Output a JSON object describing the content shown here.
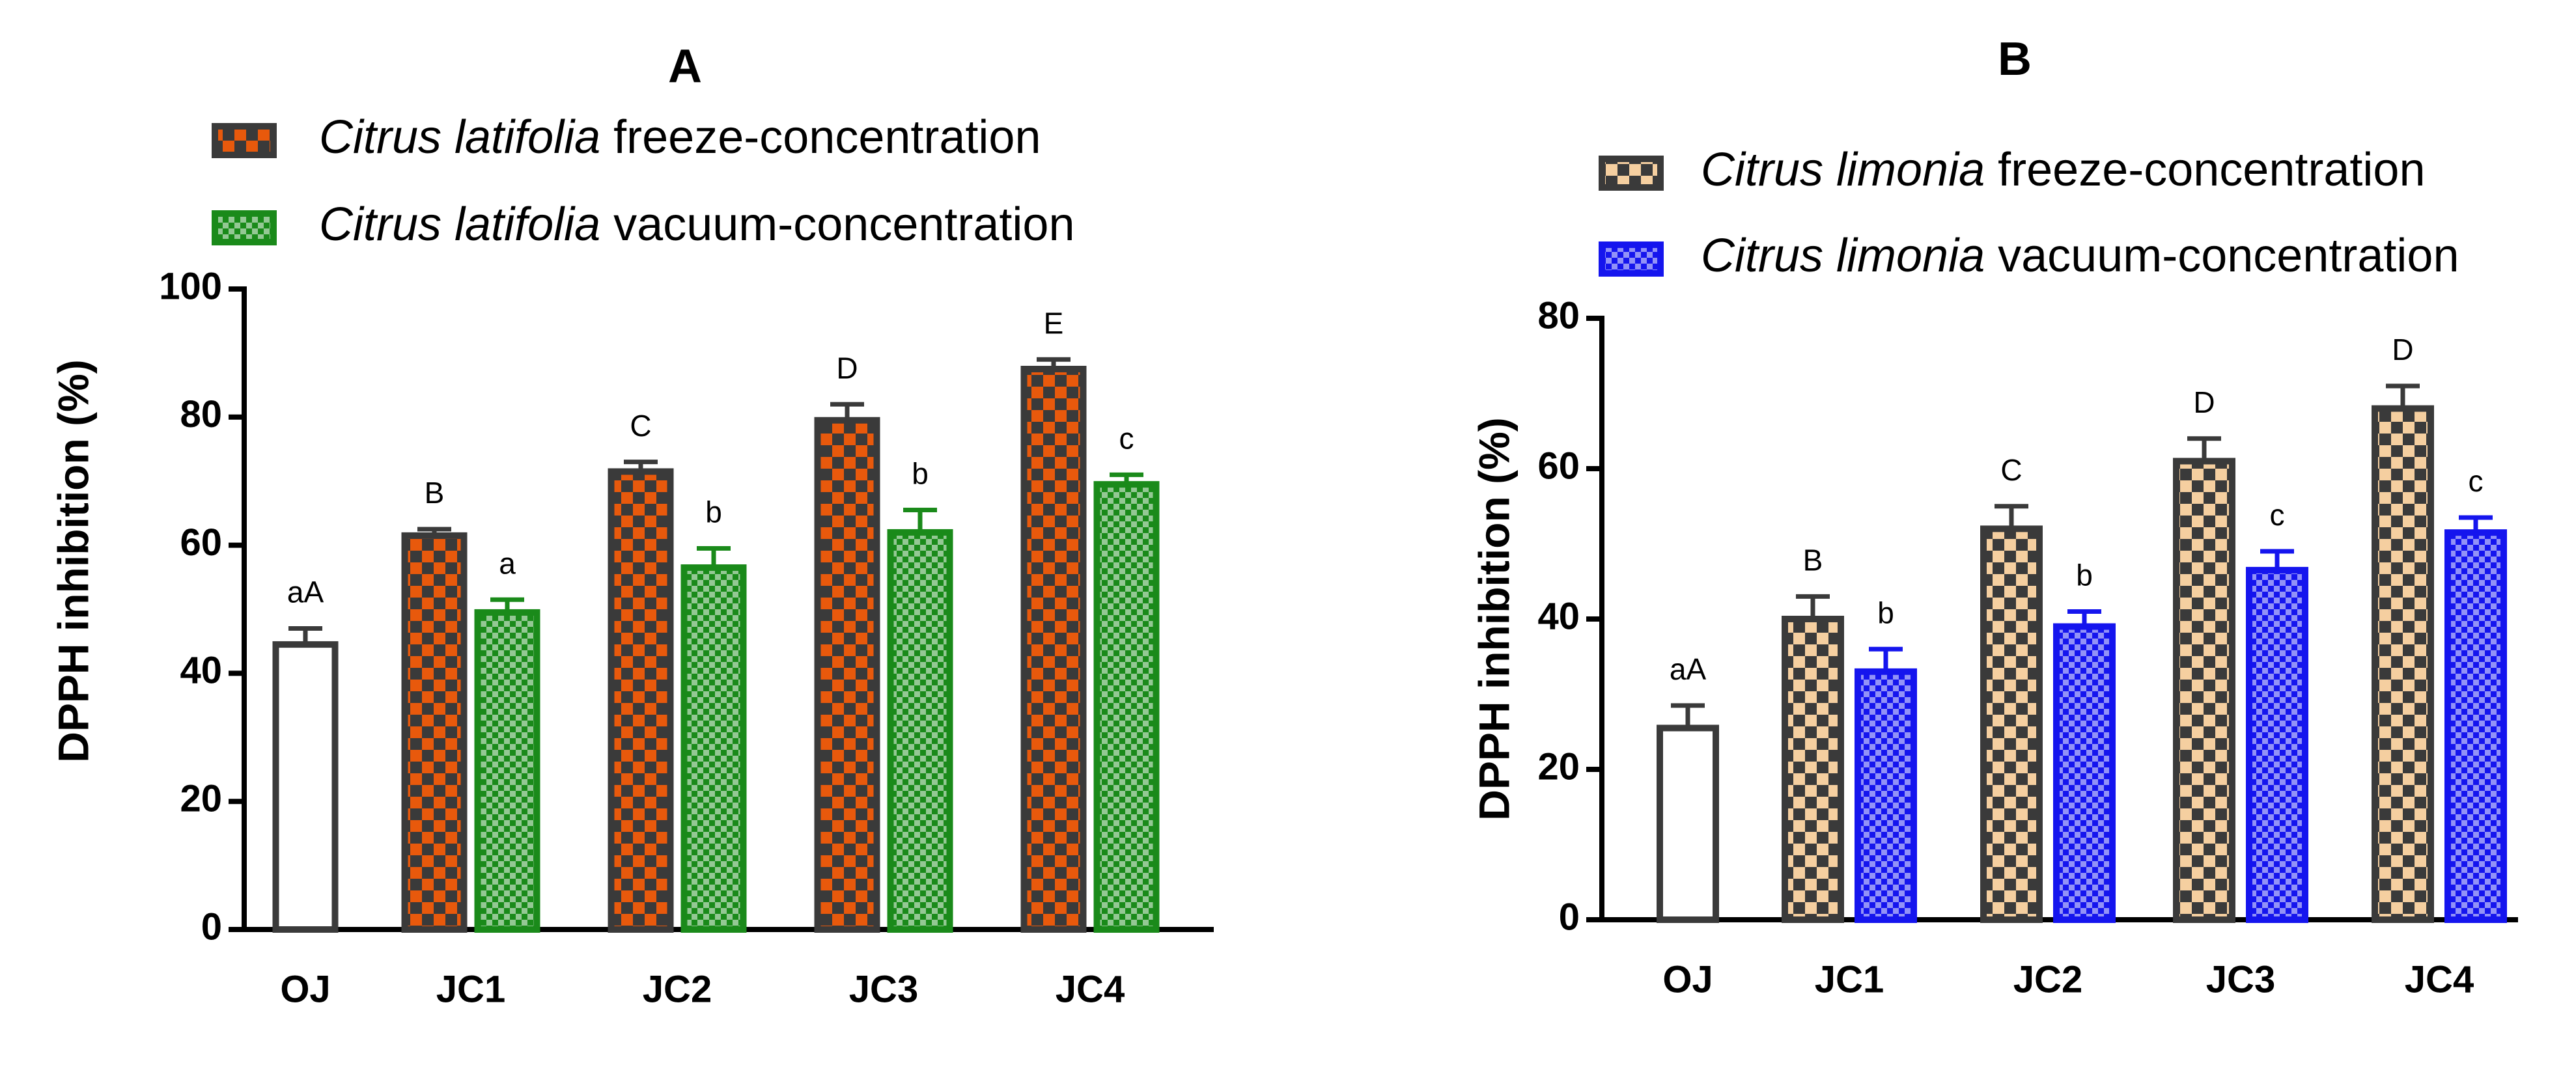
{
  "chart_data": [
    {
      "type": "bar",
      "title": "A",
      "ylabel": "DPPH inhibition (%)",
      "categories": [
        "OJ",
        "JC1",
        "JC2",
        "JC3",
        "JC4"
      ],
      "ylim": [
        0,
        100
      ],
      "yticks": [
        0,
        20,
        40,
        60,
        80,
        100
      ],
      "series": [
        {
          "color": "#ffffff",
          "edgecolor": "#3a3a3a",
          "values": [
            44.5,
            null,
            null,
            null,
            null
          ],
          "errors": [
            2.5,
            null,
            null,
            null,
            null
          ],
          "annotations": [
            "aA",
            null,
            null,
            null,
            null
          ]
        },
        {
          "name": "Citrus latifolia freeze-concentration",
          "color": "#e8590c",
          "edgecolor": "#3a3a3a",
          "values": [
            null,
            61.5,
            71.5,
            79.5,
            87.5
          ],
          "errors": [
            null,
            1,
            1.5,
            2.5,
            1.5
          ],
          "annotations": [
            null,
            "B",
            "C",
            "D",
            "E"
          ]
        },
        {
          "name": "Citrus latifolia vacuum-concentration",
          "color": "#1a8a1a",
          "edgecolor": "#1a8a1a",
          "values": [
            null,
            49.5,
            56.5,
            62,
            69.5
          ],
          "errors": [
            null,
            2,
            3,
            3.5,
            1.5
          ],
          "annotations": [
            null,
            "a",
            "b",
            "b",
            "c"
          ]
        }
      ]
    },
    {
      "type": "bar",
      "title": "B",
      "ylabel": "DPPH inhibition (%)",
      "categories": [
        "OJ",
        "JC1",
        "JC2",
        "JC3",
        "JC4"
      ],
      "ylim": [
        0,
        80
      ],
      "yticks": [
        0,
        20,
        40,
        60,
        80
      ],
      "series": [
        {
          "color": "#ffffff",
          "edgecolor": "#3a3a3a",
          "values": [
            25.5,
            null,
            null,
            null,
            null
          ],
          "errors": [
            3,
            null,
            null,
            null,
            null
          ],
          "annotations": [
            "aA",
            null,
            null,
            null,
            null
          ]
        },
        {
          "name": "Citrus limonia freeze-concentration",
          "color": "#f5cfa0",
          "edgecolor": "#3a3a3a",
          "values": [
            null,
            40,
            52,
            61,
            68
          ],
          "errors": [
            null,
            3,
            3,
            3,
            3
          ],
          "annotations": [
            null,
            "B",
            "C",
            "D",
            "D"
          ]
        },
        {
          "name": "Citrus limonia vacuum-concentration",
          "color": "#1515ee",
          "edgecolor": "#1515ee",
          "values": [
            null,
            33,
            39,
            46.5,
            51.5
          ],
          "errors": [
            null,
            3,
            2,
            2.5,
            2
          ],
          "annotations": [
            null,
            "b",
            "b",
            "c",
            "c"
          ]
        }
      ]
    }
  ]
}
